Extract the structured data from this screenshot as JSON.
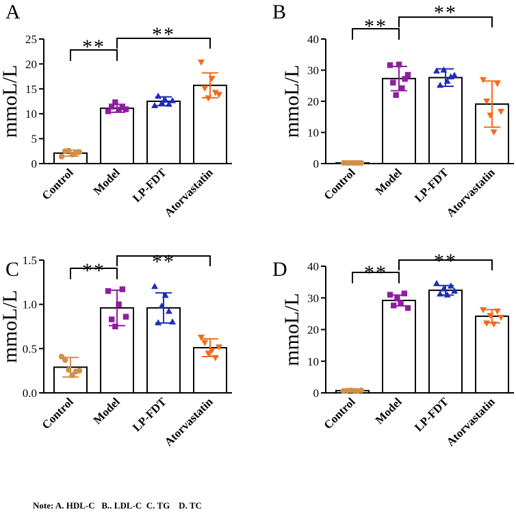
{
  "chart_data": [
    {
      "type": "bar",
      "panel": "A",
      "ylabel": "mmoL/L",
      "ylim": [
        0,
        25
      ],
      "yticks": [
        0,
        5,
        10,
        15,
        20,
        25
      ],
      "ytick_labels": [
        "0",
        "5",
        "10",
        "15",
        "20",
        "25"
      ],
      "categories": [
        "Control",
        "Model",
        "LP-FDT",
        "Atorvastatin"
      ],
      "values": [
        2.1,
        11.1,
        12.5,
        15.7
      ],
      "errors": [
        0.6,
        0.8,
        0.9,
        2.5
      ],
      "points": [
        [
          1.4,
          2.5,
          2.6,
          1.8,
          2.2,
          2.3
        ],
        [
          10.5,
          11.4,
          12.3,
          10.8,
          11.3,
          10.9
        ],
        [
          11.6,
          13.5,
          12.1,
          12.7,
          11.9,
          12.6
        ],
        [
          20.4,
          15.2,
          13.2,
          17.1,
          14.3,
          13.9
        ]
      ],
      "significance": [
        {
          "from": "Control",
          "to": "Model",
          "label": "**"
        },
        {
          "from": "Model",
          "to": "Atorvastatin",
          "label": "**"
        }
      ]
    },
    {
      "type": "bar",
      "panel": "B",
      "ylabel": "mmoL/L",
      "ylim": [
        0,
        40
      ],
      "yticks": [
        0,
        10,
        20,
        30,
        40
      ],
      "ytick_labels": [
        "0",
        "10",
        "20",
        "30",
        "40"
      ],
      "categories": [
        "Control",
        "Model",
        "LP-FDT",
        "Atorvastatin"
      ],
      "values": [
        0.2,
        27.3,
        27.6,
        19.1
      ],
      "errors": [
        0.1,
        3.9,
        2.8,
        7.4
      ],
      "points": [
        [
          0.2,
          0.2,
          0.2,
          0.2,
          0.2,
          0.2,
          0.2
        ],
        [
          31.6,
          26.0,
          22.0,
          31.8,
          24.2,
          27.2,
          28.5
        ],
        [
          29.7,
          25.1,
          30.0,
          26.4,
          27.8,
          28.3
        ],
        [
          27.0,
          20.1,
          15.6,
          10.2,
          25.8,
          16.8
        ]
      ],
      "significance": [
        {
          "from": "Control",
          "to": "Model",
          "label": "**"
        },
        {
          "from": "Model",
          "to": "Atorvastatin",
          "label": "**"
        }
      ]
    },
    {
      "type": "bar",
      "panel": "C",
      "ylabel": "mmoL/L",
      "ylim": [
        0.0,
        1.5
      ],
      "yticks": [
        0.0,
        0.5,
        1.0,
        1.5
      ],
      "ytick_labels": [
        "0.0",
        "0.5",
        "1.0",
        "1.5"
      ],
      "categories": [
        "Control",
        "Model",
        "LP-FDT",
        "Atorvastatin"
      ],
      "values": [
        0.29,
        0.96,
        0.96,
        0.51
      ],
      "errors": [
        0.11,
        0.2,
        0.17,
        0.1
      ],
      "points": [
        [
          0.41,
          0.37,
          0.26,
          0.2,
          0.24,
          0.25
        ],
        [
          1.15,
          0.83,
          0.75,
          1.0,
          1.17,
          0.86
        ],
        [
          1.2,
          0.79,
          0.98,
          1.1,
          0.92,
          0.8
        ],
        [
          0.63,
          0.57,
          0.45,
          0.48,
          0.4,
          0.52
        ]
      ],
      "significance": [
        {
          "from": "Control",
          "to": "Model",
          "label": "**"
        },
        {
          "from": "Model",
          "to": "Atorvastatin",
          "label": "**"
        }
      ]
    },
    {
      "type": "bar",
      "panel": "D",
      "ylabel": "mmoL/L",
      "ylim": [
        0,
        40
      ],
      "yticks": [
        0,
        10,
        20,
        30,
        40
      ],
      "ytick_labels": [
        "0",
        "10",
        "20",
        "30",
        "40"
      ],
      "categories": [
        "Control",
        "Model",
        "LP-FDT",
        "Atorvastatin"
      ],
      "values": [
        0.7,
        29.2,
        32.4,
        24.2
      ],
      "errors": [
        0.2,
        1.7,
        1.5,
        2.1
      ],
      "points": [
        [
          0.6,
          0.7,
          0.8,
          0.7,
          0.6,
          0.8
        ],
        [
          31.0,
          27.6,
          29.8,
          28.4,
          31.4,
          26.8
        ],
        [
          34.5,
          31.2,
          32.8,
          30.9,
          33.7,
          32.1
        ],
        [
          26.3,
          22.1,
          24.5,
          21.8,
          25.9,
          23.9
        ]
      ],
      "significance": [
        {
          "from": "Control",
          "to": "Model",
          "label": "**"
        },
        {
          "from": "Model",
          "to": "Atorvastatin",
          "label": "**"
        }
      ]
    }
  ],
  "series_style": {
    "colors": [
      "#D09048",
      "#8E1E9E",
      "#1E2EB8",
      "#F26A1B"
    ],
    "markers": [
      "circle",
      "square",
      "triangle-up",
      "triangle-down"
    ]
  },
  "note": "Note: A. HDL-C   B.. LDL-C  C. TG    D. TC"
}
